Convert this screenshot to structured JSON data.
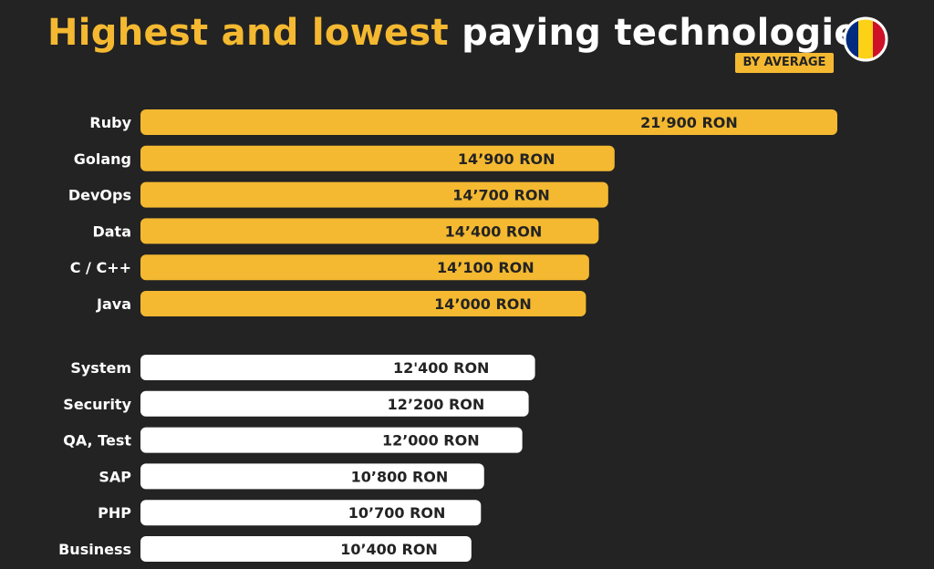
{
  "header": {
    "title_highlight": "Highest and lowest",
    "title_rest": "paying technologies",
    "badge": "BY AVERAGE"
  },
  "flag": {
    "colors": [
      "#002b7f",
      "#fcd116",
      "#ce1126"
    ]
  },
  "colors": {
    "highest": "#f4b931",
    "lowest": "#ffffff",
    "background": "#232323"
  },
  "chart_data": {
    "type": "bar",
    "orientation": "horizontal",
    "unit": "RON",
    "groups": [
      {
        "name": "highest",
        "categories": [
          "Ruby",
          "Golang",
          "DevOps",
          "Data",
          "C / C++",
          "Java"
        ],
        "values": [
          21900,
          14900,
          14700,
          14400,
          14100,
          14000
        ],
        "labels": [
          "21’900 RON",
          "14’900 RON",
          "14’700 RON",
          "14’400 RON",
          "14’100 RON",
          "14’000 RON"
        ]
      },
      {
        "name": "lowest",
        "categories": [
          "System",
          "Security",
          "QA, Test",
          "SAP",
          "PHP",
          "Business"
        ],
        "values": [
          12400,
          12200,
          12000,
          10800,
          10700,
          10400
        ],
        "labels": [
          "12'400 RON",
          "12’200 RON",
          "12’000 RON",
          "10’800 RON",
          "10’700 RON",
          "10’400 RON"
        ]
      }
    ]
  }
}
